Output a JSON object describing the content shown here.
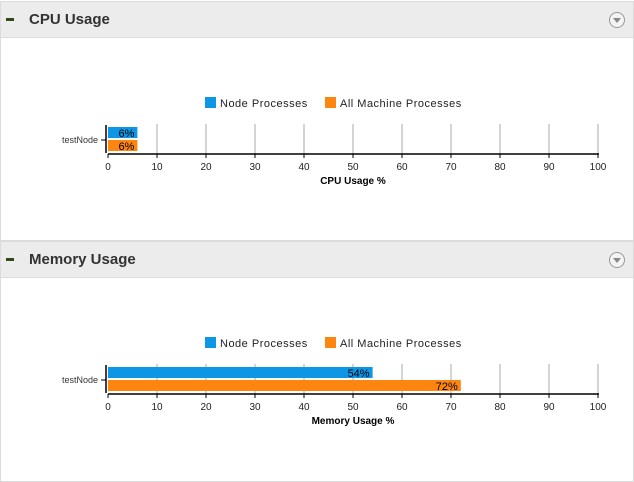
{
  "panels": [
    {
      "title": "CPU Usage",
      "chart_data": {
        "type": "bar",
        "orientation": "horizontal",
        "categories": [
          "testNode"
        ],
        "series": [
          {
            "name": "Node Processes",
            "values": [
              6
            ],
            "labels": [
              "6%"
            ],
            "color": "#0d96e6"
          },
          {
            "name": "All Machine Processes",
            "values": [
              6
            ],
            "labels": [
              "6%"
            ],
            "color": "#ff8511"
          }
        ],
        "xlabel": "CPU Usage %",
        "xlim": [
          0,
          100
        ],
        "xticks": [
          "0",
          "10",
          "20",
          "30",
          "40",
          "50",
          "60",
          "70",
          "80",
          "90",
          "100"
        ],
        "grid": true,
        "legend": "top-center"
      }
    },
    {
      "title": "Memory Usage",
      "chart_data": {
        "type": "bar",
        "orientation": "horizontal",
        "categories": [
          "testNode"
        ],
        "series": [
          {
            "name": "Node Processes",
            "values": [
              54
            ],
            "labels": [
              "54%"
            ],
            "color": "#0d96e6"
          },
          {
            "name": "All Machine Processes",
            "values": [
              72
            ],
            "labels": [
              "72%"
            ],
            "color": "#ff8511"
          }
        ],
        "xlabel": "Memory Usage %",
        "xlim": [
          0,
          100
        ],
        "xticks": [
          "0",
          "10",
          "20",
          "30",
          "40",
          "50",
          "60",
          "70",
          "80",
          "90",
          "100"
        ],
        "grid": true,
        "legend": "top-center"
      }
    }
  ]
}
